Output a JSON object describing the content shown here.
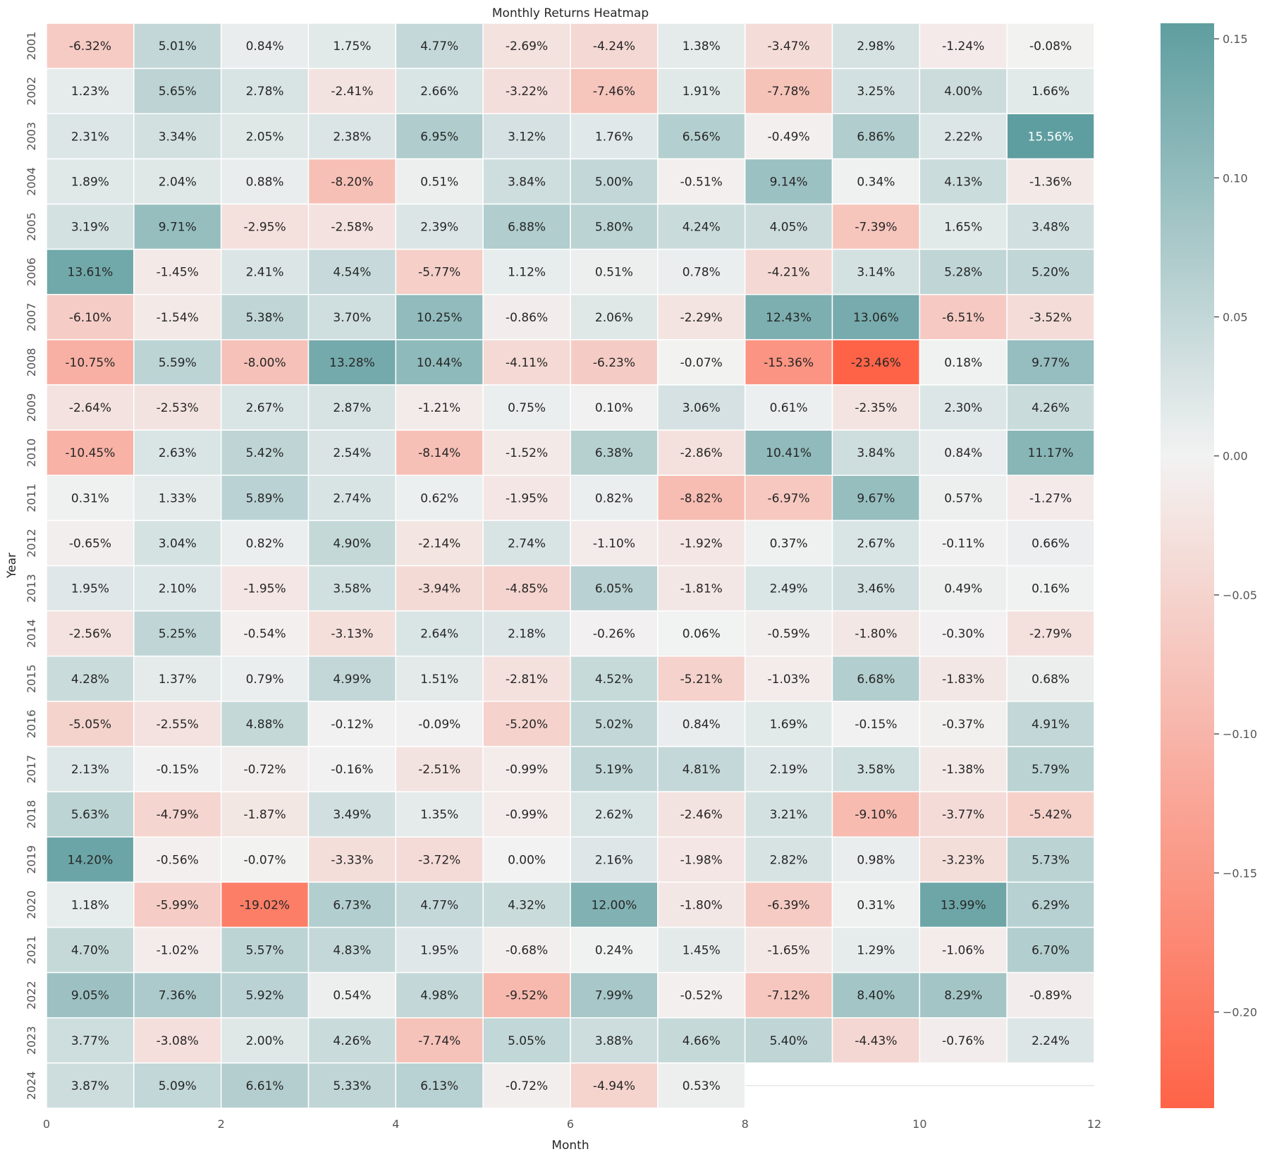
{
  "chart_data": {
    "type": "heatmap",
    "title": "Monthly Returns Heatmap",
    "xlabel": "Month",
    "ylabel": "Year",
    "x_ticks": [
      "0",
      "2",
      "4",
      "6",
      "8",
      "10",
      "12"
    ],
    "x_range": [
      0,
      12
    ],
    "years": [
      "2001",
      "2002",
      "2003",
      "2004",
      "2005",
      "2006",
      "2007",
      "2008",
      "2009",
      "2010",
      "2011",
      "2012",
      "2013",
      "2014",
      "2015",
      "2016",
      "2017",
      "2018",
      "2019",
      "2020",
      "2021",
      "2022",
      "2023",
      "2024"
    ],
    "values": [
      [
        -6.32,
        5.01,
        0.84,
        1.75,
        4.77,
        -2.69,
        -4.24,
        1.38,
        -3.47,
        2.98,
        -1.24,
        -0.08
      ],
      [
        1.23,
        5.65,
        2.78,
        -2.41,
        2.66,
        -3.22,
        -7.46,
        1.91,
        -7.78,
        3.25,
        4.0,
        1.66
      ],
      [
        2.31,
        3.34,
        2.05,
        2.38,
        6.95,
        3.12,
        1.76,
        6.56,
        -0.49,
        6.86,
        2.22,
        15.56
      ],
      [
        1.89,
        2.04,
        0.88,
        -8.2,
        0.51,
        3.84,
        5.0,
        -0.51,
        9.14,
        0.34,
        4.13,
        -1.36
      ],
      [
        3.19,
        9.71,
        -2.95,
        -2.58,
        2.39,
        6.88,
        5.8,
        4.24,
        4.05,
        -7.39,
        1.65,
        3.48
      ],
      [
        13.61,
        -1.45,
        2.41,
        4.54,
        -5.77,
        1.12,
        0.51,
        0.78,
        -4.21,
        3.14,
        5.28,
        5.2
      ],
      [
        -6.1,
        -1.54,
        5.38,
        3.7,
        10.25,
        -0.86,
        2.06,
        -2.29,
        12.43,
        13.06,
        -6.51,
        -3.52
      ],
      [
        -10.75,
        5.59,
        -8.0,
        13.28,
        10.44,
        -4.11,
        -6.23,
        -0.07,
        -15.36,
        -23.46,
        0.18,
        9.77
      ],
      [
        -2.64,
        -2.53,
        2.67,
        2.87,
        -1.21,
        0.75,
        0.1,
        3.06,
        0.61,
        -2.35,
        2.3,
        4.26
      ],
      [
        -10.45,
        2.63,
        5.42,
        2.54,
        -8.14,
        -1.52,
        6.38,
        -2.86,
        10.41,
        3.84,
        0.84,
        11.17
      ],
      [
        0.31,
        1.33,
        5.89,
        2.74,
        0.62,
        -1.95,
        0.82,
        -8.82,
        -6.97,
        9.67,
        0.57,
        -1.27
      ],
      [
        -0.65,
        3.04,
        0.82,
        4.9,
        -2.14,
        2.74,
        -1.1,
        -1.92,
        0.37,
        2.67,
        -0.11,
        0.66
      ],
      [
        1.95,
        2.1,
        -1.95,
        3.58,
        -3.94,
        -4.85,
        6.05,
        -1.81,
        2.49,
        3.46,
        0.49,
        0.16
      ],
      [
        -2.56,
        5.25,
        -0.54,
        -3.13,
        2.64,
        2.18,
        -0.26,
        0.06,
        -0.59,
        -1.8,
        -0.3,
        -2.79
      ],
      [
        4.28,
        1.37,
        0.79,
        4.99,
        1.51,
        -2.81,
        4.52,
        -5.21,
        -1.03,
        6.68,
        -1.83,
        0.68
      ],
      [
        -5.05,
        -2.55,
        4.88,
        -0.12,
        -0.09,
        -5.2,
        5.02,
        0.84,
        1.69,
        -0.15,
        -0.37,
        4.91
      ],
      [
        2.13,
        -0.15,
        -0.72,
        -0.16,
        -2.51,
        -0.99,
        5.19,
        4.81,
        2.19,
        3.58,
        -1.38,
        5.79
      ],
      [
        5.63,
        -4.79,
        -1.87,
        3.49,
        1.35,
        -0.99,
        2.62,
        -2.46,
        3.21,
        -9.1,
        -3.77,
        -5.42
      ],
      [
        14.2,
        -0.56,
        -0.07,
        -3.33,
        -3.72,
        -0.0,
        2.16,
        -1.98,
        2.82,
        0.98,
        -3.23,
        5.73
      ],
      [
        1.18,
        -5.99,
        -19.02,
        6.73,
        4.77,
        4.32,
        12.0,
        -1.8,
        -6.39,
        0.31,
        13.99,
        6.29
      ],
      [
        4.7,
        -1.02,
        5.57,
        4.83,
        1.95,
        -0.68,
        0.24,
        1.45,
        -1.65,
        1.29,
        -1.06,
        6.7
      ],
      [
        9.05,
        7.36,
        5.92,
        0.54,
        4.98,
        -9.52,
        7.99,
        -0.52,
        -7.12,
        8.4,
        8.29,
        -0.89
      ],
      [
        3.77,
        -3.08,
        2.0,
        4.26,
        -7.74,
        5.05,
        3.88,
        4.66,
        5.4,
        -4.43,
        -0.76,
        2.24
      ],
      [
        3.87,
        5.09,
        6.61,
        5.33,
        6.13,
        -0.72,
        -4.94,
        0.53,
        null,
        null,
        null,
        null
      ]
    ],
    "value_format": "percent, 2 decimals",
    "colorbar": {
      "range": [
        -0.2346,
        0.1556
      ],
      "ticks": [
        "0.15",
        "0.10",
        "0.05",
        "0.00",
        "−0.05",
        "−0.10",
        "−0.15",
        "−0.20"
      ],
      "tick_values": [
        0.15,
        0.1,
        0.05,
        0.0,
        -0.05,
        -0.1,
        -0.15,
        -0.2
      ],
      "low_color": "#ff6347",
      "mid_color": "#f2f2f2",
      "high_color": "#5f9ea0",
      "placement": "right"
    },
    "grid": false
  }
}
